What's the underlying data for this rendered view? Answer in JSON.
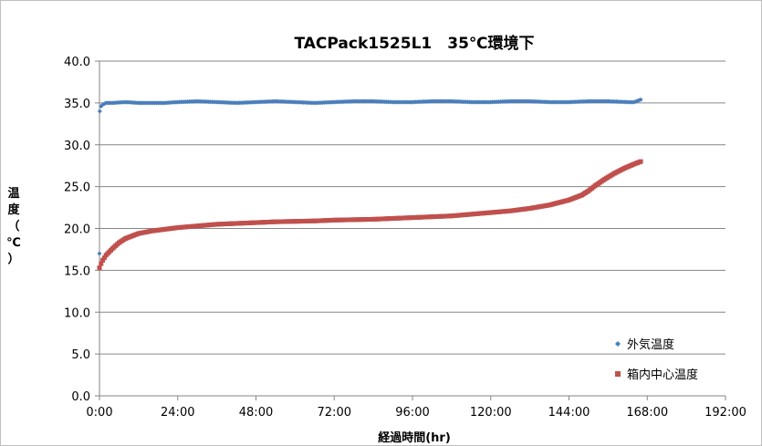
{
  "chart_data": {
    "type": "scatter",
    "title": "TACPack1525L1　35℃環境下",
    "xlabel": "経過時間(hr)",
    "ylabel": "温度（℃）",
    "xlim": [
      0,
      192
    ],
    "ylim": [
      0,
      40
    ],
    "x_tick_step": 24,
    "y_tick_step": 5,
    "x_tick_labels": [
      "0:00",
      "24:00",
      "48:00",
      "72:00",
      "96:00",
      "120:00",
      "144:00",
      "168:00",
      "192:00"
    ],
    "y_tick_labels": [
      "0.0",
      "5.0",
      "10.0",
      "15.0",
      "20.0",
      "25.0",
      "30.0",
      "35.0",
      "40.0"
    ],
    "grid": {
      "horizontal": true,
      "vertical": false
    },
    "legend": "right",
    "series": [
      {
        "name": "外気温度",
        "color": "#4a7ebb",
        "marker": "diamond",
        "points": [
          [
            0,
            17.0
          ],
          [
            0.1,
            34.0
          ],
          [
            0.5,
            34.6
          ],
          [
            1,
            34.8
          ],
          [
            2,
            35.0
          ],
          [
            4,
            35.0
          ],
          [
            8,
            35.1
          ],
          [
            12,
            35.0
          ],
          [
            16,
            35.0
          ],
          [
            20,
            35.0
          ],
          [
            24,
            35.1
          ],
          [
            30,
            35.2
          ],
          [
            36,
            35.1
          ],
          [
            42,
            35.0
          ],
          [
            48,
            35.1
          ],
          [
            54,
            35.2
          ],
          [
            60,
            35.1
          ],
          [
            66,
            35.0
          ],
          [
            72,
            35.1
          ],
          [
            78,
            35.2
          ],
          [
            84,
            35.2
          ],
          [
            90,
            35.1
          ],
          [
            96,
            35.1
          ],
          [
            102,
            35.2
          ],
          [
            108,
            35.2
          ],
          [
            114,
            35.1
          ],
          [
            120,
            35.1
          ],
          [
            126,
            35.2
          ],
          [
            132,
            35.2
          ],
          [
            138,
            35.1
          ],
          [
            144,
            35.1
          ],
          [
            150,
            35.2
          ],
          [
            156,
            35.2
          ],
          [
            162,
            35.1
          ],
          [
            164,
            35.1
          ],
          [
            166,
            35.4
          ]
        ]
      },
      {
        "name": "箱内中心温度",
        "color": "#c0504d",
        "marker": "square",
        "points": [
          [
            0,
            15.3
          ],
          [
            0.5,
            15.8
          ],
          [
            1,
            16.2
          ],
          [
            2,
            16.8
          ],
          [
            4,
            17.6
          ],
          [
            6,
            18.3
          ],
          [
            8,
            18.8
          ],
          [
            10,
            19.1
          ],
          [
            12,
            19.4
          ],
          [
            16,
            19.7
          ],
          [
            20,
            19.9
          ],
          [
            24,
            20.1
          ],
          [
            30,
            20.3
          ],
          [
            36,
            20.5
          ],
          [
            42,
            20.6
          ],
          [
            48,
            20.7
          ],
          [
            54,
            20.8
          ],
          [
            60,
            20.85
          ],
          [
            66,
            20.9
          ],
          [
            72,
            21.0
          ],
          [
            78,
            21.05
          ],
          [
            84,
            21.1
          ],
          [
            90,
            21.2
          ],
          [
            96,
            21.3
          ],
          [
            102,
            21.4
          ],
          [
            108,
            21.5
          ],
          [
            114,
            21.7
          ],
          [
            120,
            21.9
          ],
          [
            126,
            22.1
          ],
          [
            132,
            22.4
          ],
          [
            138,
            22.8
          ],
          [
            144,
            23.4
          ],
          [
            148,
            24.0
          ],
          [
            150,
            24.5
          ],
          [
            152,
            25.1
          ],
          [
            155,
            25.9
          ],
          [
            158,
            26.6
          ],
          [
            161,
            27.2
          ],
          [
            164,
            27.7
          ],
          [
            166,
            28.0
          ]
        ]
      }
    ]
  }
}
